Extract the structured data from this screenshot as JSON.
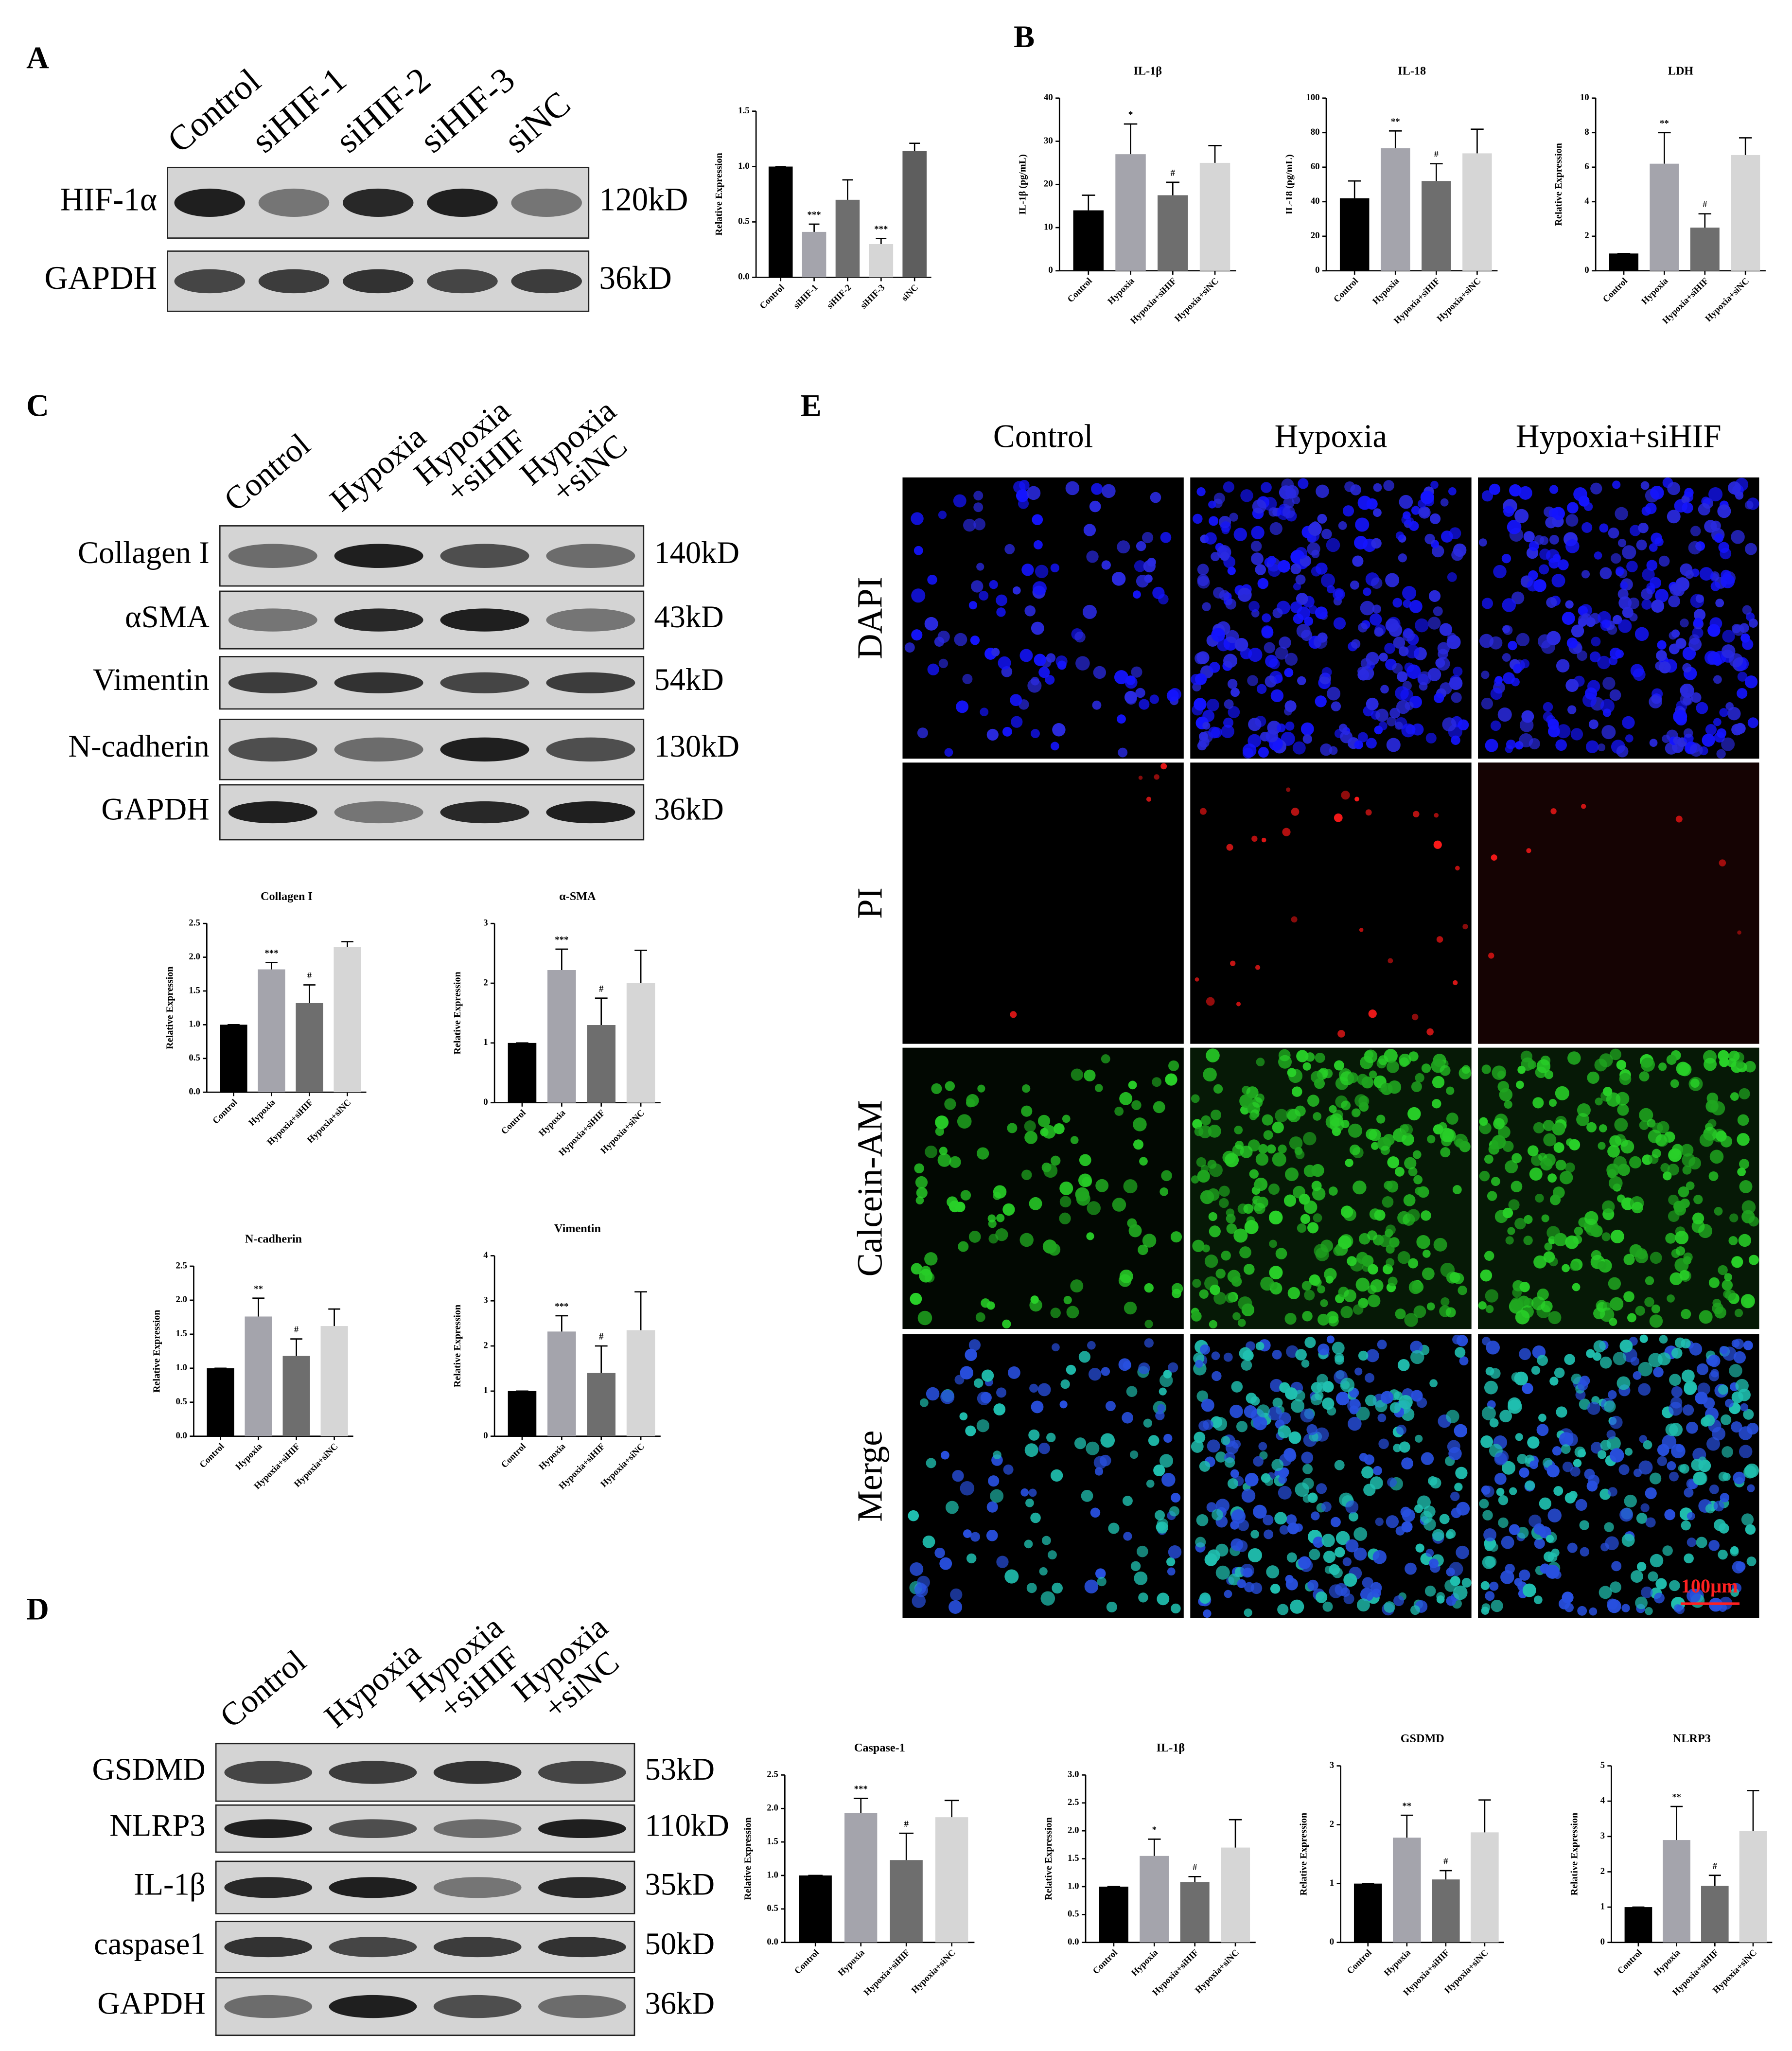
{
  "panel_labels": [
    "A",
    "B",
    "C",
    "D",
    "E"
  ],
  "blots": [
    {
      "lanes": [
        [
          "Control"
        ],
        [
          "siHIF-1"
        ],
        [
          "siHIF-2"
        ],
        [
          "siHIF-3"
        ],
        [
          "siNC"
        ]
      ],
      "rows": [
        {
          "protein": "HIF-1α",
          "size": "120kD"
        },
        {
          "protein": "GAPDH",
          "size": "36kD"
        }
      ]
    },
    {
      "lanes": [
        [
          "Control"
        ],
        [
          "Hypoxia"
        ],
        [
          "Hypoxia",
          "+siHIF"
        ],
        [
          "Hypoxia",
          "+siNC"
        ]
      ],
      "rows": [
        {
          "protein": "Collagen I",
          "size": "140kD"
        },
        {
          "protein": "αSMA",
          "size": "43kD"
        },
        {
          "protein": "Vimentin",
          "size": "54kD"
        },
        {
          "protein": "N-cadherin",
          "size": "130kD"
        },
        {
          "protein": "GAPDH",
          "size": "36kD"
        }
      ]
    },
    {
      "lanes": [
        [
          "Control"
        ],
        [
          "Hypoxia"
        ],
        [
          "Hypoxia",
          "+siHIF"
        ],
        [
          "Hypoxia",
          "+siNC"
        ]
      ],
      "rows": [
        {
          "protein": "GSDMD",
          "size": "53kD"
        },
        {
          "protein": "NLRP3",
          "size": "110kD"
        },
        {
          "protein": "IL-1β",
          "size": "35kD"
        },
        {
          "protein": "caspase1",
          "size": "50kD"
        },
        {
          "protein": "GAPDH",
          "size": "36kD"
        }
      ]
    }
  ],
  "fluorescence": {
    "columns": [
      "Control",
      "Hypoxia",
      "Hypoxia+siHIF"
    ],
    "rows": [
      "DAPI",
      "PI",
      "Calcein-AM",
      "Merge"
    ],
    "scale_bar": "100μm"
  },
  "chart_data": [
    {
      "type": "bar",
      "y_label": "Relative Expression",
      "categories": [
        "Control",
        "siHIF-1",
        "siHIF-2",
        "siHIF-3",
        "siNC"
      ],
      "values": [
        1.0,
        0.41,
        0.7,
        0.3,
        1.14
      ],
      "errors": [
        0,
        0.07,
        0.18,
        0.05,
        0.07
      ],
      "annotations": [
        null,
        "***",
        null,
        "***",
        null
      ],
      "colors": [
        "#000000",
        "#a4a4ac",
        "#6e6e6e",
        "#d6d6d6",
        "#5e5e5e"
      ],
      "ylim": [
        0,
        1.5
      ],
      "yticks": [
        {
          "value": 0,
          "label": "0.0"
        },
        0.5,
        {
          "value": 1,
          "label": "1.0"
        },
        1.5
      ]
    },
    {
      "type": "bar",
      "title": "IL-1β",
      "y_label": "IL-1β (pg/mL)",
      "categories": [
        "Control",
        "Hypoxia",
        "Hypoxia+siHIF",
        "Hypoxia+siNC"
      ],
      "values": [
        14,
        27,
        17.5,
        25
      ],
      "errors": [
        3.5,
        7,
        3,
        4
      ],
      "annotations": [
        null,
        "*",
        "#",
        null
      ],
      "colors": [
        "#000000",
        "#a4a4ac",
        "#6e6e6e",
        "#d6d6d6"
      ],
      "ylim": [
        0,
        40
      ],
      "yticks": [
        0,
        10,
        20,
        30,
        40
      ]
    },
    {
      "type": "bar",
      "title": "IL-18",
      "y_label": "IL-18 (pg/mL)",
      "categories": [
        "Control",
        "Hypoxia",
        "Hypoxia+siHIF",
        "Hypoxia+siNC"
      ],
      "values": [
        42,
        71,
        52,
        68
      ],
      "errors": [
        10,
        10,
        10,
        14
      ],
      "annotations": [
        null,
        "**",
        "#",
        null
      ],
      "colors": [
        "#000000",
        "#a4a4ac",
        "#6e6e6e",
        "#d6d6d6"
      ],
      "ylim": [
        0,
        100
      ],
      "yticks": [
        0,
        20,
        40,
        60,
        80,
        100
      ]
    },
    {
      "type": "bar",
      "title": "LDH",
      "y_label": "Relative Expression",
      "categories": [
        "Control",
        "Hypoxia",
        "Hypoxia+siHIF",
        "Hypoxia+siNC"
      ],
      "values": [
        1,
        6.2,
        2.5,
        6.7
      ],
      "errors": [
        0,
        1.8,
        0.8,
        1.0
      ],
      "annotations": [
        null,
        "**",
        "#",
        null
      ],
      "colors": [
        "#000000",
        "#a4a4ac",
        "#6e6e6e",
        "#d6d6d6"
      ],
      "ylim": [
        0,
        10
      ],
      "yticks": [
        0,
        2,
        4,
        6,
        8,
        10
      ]
    },
    {
      "type": "bar",
      "title": "Collagen I",
      "y_label": "Relative Expression",
      "categories": [
        "Control",
        "Hypoxia",
        "Hypoxia+siHIF",
        "Hypoxia+siNC"
      ],
      "values": [
        1,
        1.82,
        1.32,
        2.15
      ],
      "errors": [
        0,
        0.1,
        0.27,
        0.08
      ],
      "annotations": [
        null,
        "***",
        "#",
        null
      ],
      "colors": [
        "#000000",
        "#a4a4ac",
        "#6e6e6e",
        "#d6d6d6"
      ],
      "ylim": [
        0,
        2.5
      ],
      "yticks": [
        {
          "value": 0,
          "label": "0.0"
        },
        0.5,
        {
          "value": 1,
          "label": "1.0"
        },
        1.5,
        {
          "value": 2,
          "label": "2.0"
        },
        2.5
      ]
    },
    {
      "type": "bar",
      "title": "α-SMA",
      "y_label": "Relative Expression",
      "categories": [
        "Control",
        "Hypoxia",
        "Hypoxia+siHIF",
        "Hypoxia+siNC"
      ],
      "values": [
        1,
        2.22,
        1.3,
        2.0
      ],
      "errors": [
        0,
        0.35,
        0.45,
        0.55
      ],
      "annotations": [
        null,
        "***",
        "#",
        null
      ],
      "colors": [
        "#000000",
        "#a4a4ac",
        "#6e6e6e",
        "#d6d6d6"
      ],
      "ylim": [
        0,
        3
      ],
      "yticks": [
        0,
        1,
        2,
        3
      ]
    },
    {
      "type": "bar",
      "title": "N-cadherin",
      "y_label": "Relative Expression",
      "categories": [
        "Control",
        "Hypoxia",
        "Hypoxia+siHIF",
        "Hypoxia+siNC"
      ],
      "values": [
        1,
        1.76,
        1.18,
        1.62
      ],
      "errors": [
        0,
        0.27,
        0.25,
        0.25
      ],
      "annotations": [
        null,
        "**",
        "#",
        null
      ],
      "colors": [
        "#000000",
        "#a4a4ac",
        "#6e6e6e",
        "#d6d6d6"
      ],
      "ylim": [
        0,
        2.5
      ],
      "yticks": [
        {
          "value": 0,
          "label": "0.0"
        },
        0.5,
        {
          "value": 1,
          "label": "1.0"
        },
        1.5,
        {
          "value": 2,
          "label": "2.0"
        },
        2.5
      ]
    },
    {
      "type": "bar",
      "title": "Vimentin",
      "y_label": "Relative Expression",
      "categories": [
        "Control",
        "Hypoxia",
        "Hypoxia+siHIF",
        "Hypoxia+siNC"
      ],
      "values": [
        1,
        2.32,
        1.4,
        2.35
      ],
      "errors": [
        0,
        0.35,
        0.6,
        0.85
      ],
      "annotations": [
        null,
        "***",
        "#",
        null
      ],
      "colors": [
        "#000000",
        "#a4a4ac",
        "#6e6e6e",
        "#d6d6d6"
      ],
      "ylim": [
        0,
        4
      ],
      "yticks": [
        0,
        1,
        2,
        3,
        4
      ]
    },
    {
      "type": "bar",
      "title": "Caspase-1",
      "y_label": "Relative Expression",
      "categories": [
        "Control",
        "Hypoxia",
        "Hypoxia+siHIF",
        "Hypoxia+siNC"
      ],
      "values": [
        1,
        1.93,
        1.23,
        1.87
      ],
      "errors": [
        0,
        0.22,
        0.4,
        0.25
      ],
      "annotations": [
        null,
        "***",
        "#",
        null
      ],
      "colors": [
        "#000000",
        "#a4a4ac",
        "#6e6e6e",
        "#d6d6d6"
      ],
      "ylim": [
        0,
        2.5
      ],
      "yticks": [
        {
          "value": 0,
          "label": "0.0"
        },
        0.5,
        {
          "value": 1,
          "label": "1.0"
        },
        1.5,
        {
          "value": 2,
          "label": "2.0"
        },
        2.5
      ]
    },
    {
      "type": "bar",
      "title": "IL-1β",
      "y_label": "Relative Expression",
      "categories": [
        "Control",
        "Hypoxia",
        "Hypoxia+siHIF",
        "Hypoxia+siNC"
      ],
      "values": [
        1,
        1.55,
        1.08,
        1.7
      ],
      "errors": [
        0,
        0.3,
        0.1,
        0.5
      ],
      "annotations": [
        null,
        "*",
        "#",
        null
      ],
      "colors": [
        "#000000",
        "#a4a4ac",
        "#6e6e6e",
        "#d6d6d6"
      ],
      "ylim": [
        0,
        3
      ],
      "yticks": [
        {
          "value": 0,
          "label": "0.0"
        },
        0.5,
        {
          "value": 1,
          "label": "1.0"
        },
        1.5,
        {
          "value": 2,
          "label": "2.0"
        },
        2.5,
        {
          "value": 3,
          "label": "3.0"
        }
      ]
    },
    {
      "type": "bar",
      "title": "GSDMD",
      "y_label": "Relative Expression",
      "categories": [
        "Control",
        "Hypoxia",
        "Hypoxia+siHIF",
        "Hypoxia+siNC"
      ],
      "values": [
        1,
        1.78,
        1.07,
        1.87
      ],
      "errors": [
        0,
        0.38,
        0.15,
        0.55
      ],
      "annotations": [
        null,
        "**",
        "#",
        null
      ],
      "colors": [
        "#000000",
        "#a4a4ac",
        "#6e6e6e",
        "#d6d6d6"
      ],
      "ylim": [
        0,
        3
      ],
      "yticks": [
        0,
        1,
        2,
        3
      ]
    },
    {
      "type": "bar",
      "title": "NLRP3",
      "y_label": "Relative Expression",
      "categories": [
        "Control",
        "Hypoxia",
        "Hypoxia+siHIF",
        "Hypoxia+siNC"
      ],
      "values": [
        1,
        2.9,
        1.6,
        3.15
      ],
      "errors": [
        0,
        0.95,
        0.3,
        1.15
      ],
      "annotations": [
        null,
        "**",
        "#",
        null
      ],
      "colors": [
        "#000000",
        "#a4a4ac",
        "#6e6e6e",
        "#d6d6d6"
      ],
      "ylim": [
        0,
        5
      ],
      "yticks": [
        0,
        1,
        2,
        3,
        4,
        5
      ]
    }
  ]
}
